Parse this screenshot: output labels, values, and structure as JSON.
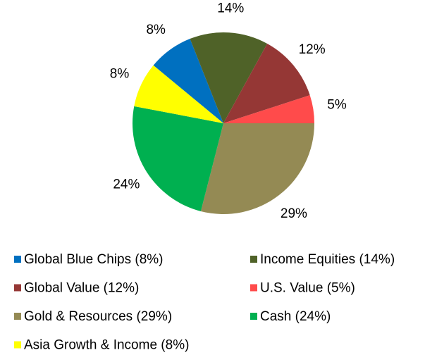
{
  "chart_data": {
    "type": "pie",
    "categories": [
      "Global Blue Chips (8%)",
      "Income Equities (14%)",
      "Global Value (12%)",
      "U.S. Value (5%)",
      "Gold & Resources (29%)",
      "Cash (24%)",
      "Asia Growth & Income (8%)"
    ],
    "values": [
      8,
      14,
      12,
      5,
      29,
      24,
      8
    ],
    "value_labels": [
      "8%",
      "14%",
      "12%",
      "5%",
      "29%",
      "24%",
      "8%"
    ],
    "colors": [
      "#0070c0",
      "#4f6228",
      "#953735",
      "#ff4b4b",
      "#948a54",
      "#00b050",
      "#ffff00"
    ],
    "legend": "bottom"
  }
}
